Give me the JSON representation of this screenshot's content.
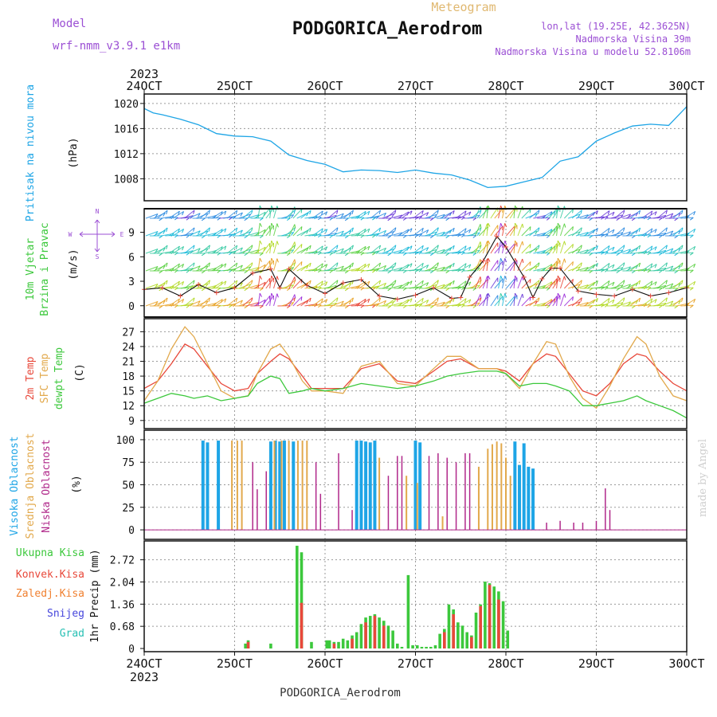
{
  "header": {
    "model_label": "Model",
    "model_name": "wrf-nmm_v3.9.1 e1km",
    "product": "Meteogram",
    "station": "PODGORICA_Aerodrom",
    "lonlat": "lon,lat (19.25E, 42.3625N)",
    "altitude": "Nadmorska Visina 39m",
    "model_altitude": "Nadmorska Visina u modelu 52.8106m"
  },
  "footer": {
    "station": "PODGORICA_Aerodrom",
    "credit": "made by Angel"
  },
  "colors": {
    "pressure": "#1ea5e6",
    "temp2m": "#e8483a",
    "sfc": "#e2a94c",
    "dewpt": "#3cc83c",
    "high_cloud": "#1ea5e6",
    "mid_cloud": "#e2a94c",
    "low_cloud": "#b0288a",
    "rain_total": "#3cc83c",
    "rain_conv": "#e8483a",
    "rain_frozen": "#f08030",
    "snow": "#4646dc",
    "hail": "#28c0b4"
  },
  "chart_data": [
    {
      "id": "pressure",
      "type": "line",
      "ylabel": "Pritisak na nivou mora",
      "unit": "(hPa)",
      "yticks": [
        "1020",
        "1016",
        "1012",
        "1008"
      ],
      "ylim": [
        1005,
        1021
      ],
      "x_year": "2023",
      "xticks": [
        "24OCT",
        "25OCT",
        "26OCT",
        "27OCT",
        "28OCT",
        "29OCT",
        "30OCT"
      ],
      "x": [
        0,
        0.1,
        0.2,
        0.4,
        0.6,
        0.8,
        1.0,
        1.2,
        1.4,
        1.6,
        1.8,
        2.0,
        2.2,
        2.4,
        2.6,
        2.8,
        3.0,
        3.2,
        3.4,
        3.6,
        3.8,
        4.0,
        4.2,
        4.4,
        4.6,
        4.8,
        5.0,
        5.2,
        5.4,
        5.6,
        5.8,
        6.0
      ],
      "series": [
        {
          "values": [
            1019.2,
            1018.5,
            1018.2,
            1017.5,
            1016.6,
            1015.2,
            1014.8,
            1014.7,
            1014.0,
            1011.8,
            1010.9,
            1010.3,
            1009.1,
            1009.4,
            1009.3,
            1009.0,
            1009.4,
            1008.9,
            1008.6,
            1007.8,
            1006.6,
            1006.8,
            1007.5,
            1008.2,
            1010.8,
            1011.5,
            1014.0,
            1015.3,
            1016.4,
            1016.7,
            1016.5,
            1019.5
          ]
        }
      ]
    },
    {
      "id": "wind",
      "type": "line",
      "ylabel": "10m Vjetar",
      "ylabel2": "Brzina i Pravac",
      "unit": "(m/s)",
      "compass": [
        "N",
        "E",
        "S",
        "W"
      ],
      "yticks": [
        "9",
        "6",
        "3",
        "0"
      ],
      "ylim": [
        -1,
        11.5
      ],
      "x": [
        0,
        0.2,
        0.4,
        0.6,
        0.8,
        1.0,
        1.2,
        1.4,
        1.5,
        1.6,
        1.8,
        2.0,
        2.2,
        2.4,
        2.6,
        2.8,
        3.0,
        3.2,
        3.4,
        3.5,
        3.6,
        3.75,
        3.9,
        4.0,
        4.2,
        4.3,
        4.4,
        4.5,
        4.6,
        4.8,
        5.0,
        5.2,
        5.4,
        5.6,
        5.8,
        6.0
      ],
      "series": [
        {
          "values": [
            2.0,
            2.2,
            1.2,
            2.6,
            1.6,
            2.2,
            4.0,
            4.5,
            2.2,
            4.5,
            2.5,
            1.5,
            2.8,
            3.2,
            1.2,
            0.8,
            1.3,
            2.2,
            0.9,
            1.0,
            3.5,
            5.5,
            8.5,
            7.2,
            3.5,
            1.0,
            3.3,
            4.6,
            4.6,
            1.8,
            1.4,
            1.2,
            2.0,
            1.2,
            1.6,
            2.2
          ]
        }
      ]
    },
    {
      "id": "temp",
      "type": "line",
      "ylabel": "2m Temp",
      "ylabel2": "SFC Temp",
      "ylabel3": "dewpt Temp",
      "unit": "(C)",
      "yticks": [
        "27",
        "24",
        "21",
        "18",
        "15",
        "12",
        "9"
      ],
      "ylim": [
        8,
        29
      ],
      "x": [
        0,
        0.15,
        0.3,
        0.45,
        0.55,
        0.7,
        0.85,
        1.0,
        1.15,
        1.25,
        1.4,
        1.5,
        1.6,
        1.75,
        1.85,
        2.0,
        2.2,
        2.4,
        2.6,
        2.8,
        3.0,
        3.2,
        3.35,
        3.5,
        3.7,
        3.9,
        4.0,
        4.15,
        4.3,
        4.45,
        4.55,
        4.7,
        4.85,
        5.0,
        5.15,
        5.3,
        5.45,
        5.55,
        5.7,
        5.85,
        6.0
      ],
      "series": [
        {
          "name": "2m Temp",
          "values": [
            15.5,
            17.0,
            20.5,
            24.5,
            23.5,
            20.0,
            16.5,
            15.0,
            15.5,
            18.5,
            21.0,
            22.5,
            21.5,
            18.0,
            15.5,
            15.5,
            15.5,
            19.5,
            20.5,
            17.0,
            16.5,
            19.0,
            21.0,
            21.5,
            19.5,
            19.5,
            19.0,
            17.0,
            20.5,
            22.5,
            22.0,
            18.5,
            15.0,
            14.0,
            16.5,
            20.5,
            22.5,
            22.0,
            19.0,
            16.5,
            15.0
          ]
        },
        {
          "name": "SFC Temp",
          "values": [
            13.0,
            17.0,
            23.5,
            28.0,
            26.0,
            20.5,
            15.0,
            13.5,
            14.0,
            18.5,
            23.5,
            24.5,
            22.0,
            17.0,
            15.0,
            15.0,
            14.5,
            20.0,
            21.0,
            16.5,
            16.0,
            19.5,
            22.0,
            22.0,
            19.5,
            19.5,
            18.5,
            15.5,
            20.5,
            25.0,
            24.5,
            18.0,
            13.5,
            11.5,
            16.0,
            21.5,
            26.0,
            24.5,
            18.0,
            14.0,
            13.0
          ]
        },
        {
          "name": "dewpt Temp",
          "values": [
            12.5,
            13.5,
            14.5,
            14.0,
            13.5,
            14.0,
            13.0,
            13.5,
            14.0,
            16.5,
            18.0,
            17.5,
            14.5,
            15.0,
            15.5,
            15.0,
            15.5,
            16.5,
            16.0,
            15.5,
            16.0,
            17.0,
            18.0,
            18.5,
            19.0,
            19.0,
            18.5,
            16.0,
            16.5,
            16.5,
            16.0,
            15.0,
            12.0,
            12.0,
            12.5,
            13.0,
            14.0,
            13.0,
            12.0,
            11.0,
            9.5
          ]
        }
      ]
    },
    {
      "id": "cloud",
      "type": "bar",
      "ylabel": "Visoka Oblacnost",
      "ylabel2": "Srednja Oblacnost",
      "ylabel3": "Niska Oblacnost",
      "unit": "(%)",
      "yticks": [
        "100",
        "75",
        "50",
        "25",
        "0"
      ],
      "ylim": [
        -7,
        107
      ],
      "series": [
        {
          "name": "Visoka Oblacnost",
          "x": [
            0.65,
            0.7,
            0.82,
            1.4,
            1.45,
            1.5,
            1.55,
            1.65,
            2.35,
            2.4,
            2.45,
            2.5,
            2.55,
            3.0,
            3.05,
            4.1,
            4.15,
            4.2,
            4.25,
            4.3
          ],
          "values": [
            99,
            97,
            99,
            98,
            99,
            98,
            99,
            98,
            99,
            99,
            98,
            97,
            99,
            99,
            97,
            98,
            72,
            96,
            70,
            68
          ]
        },
        {
          "name": "Srednja Oblacnost",
          "x": [
            0.97,
            1.03,
            1.08,
            1.44,
            1.52,
            1.6,
            1.7,
            1.75,
            1.8,
            2.6,
            2.9,
            3.02,
            3.3,
            3.7,
            3.8,
            3.85,
            3.9,
            3.95,
            4.0,
            4.05
          ],
          "values": [
            99,
            99,
            99,
            99,
            99,
            99,
            99,
            99,
            99,
            80,
            60,
            52,
            15,
            70,
            90,
            95,
            98,
            96,
            80,
            60
          ]
        },
        {
          "name": "Niska Oblacnost",
          "x": [
            1.2,
            1.25,
            1.35,
            1.9,
            1.95,
            2.15,
            2.3,
            2.7,
            2.8,
            2.85,
            3.15,
            3.25,
            3.35,
            3.45,
            3.55,
            3.6,
            4.45,
            4.6,
            4.75,
            4.85,
            5.0,
            5.1,
            5.15
          ],
          "values": [
            75,
            45,
            65,
            75,
            40,
            85,
            22,
            60,
            82,
            82,
            82,
            85,
            80,
            75,
            85,
            85,
            8,
            10,
            8,
            8,
            10,
            46,
            22
          ]
        }
      ]
    },
    {
      "id": "precip",
      "type": "bar",
      "legend": [
        "Ukupna Kisa",
        "Konvek.Kisa",
        "Zaledj.Kisa",
        "Snijeg",
        "Grad"
      ],
      "ylabel": "1hr Precip (mm)",
      "yticks": [
        "2.72",
        "2.04",
        "1.36",
        "0.68",
        "0"
      ],
      "ylim": [
        0,
        3.2
      ],
      "x_year": "2023",
      "xticks": [
        "24OCT",
        "25OCT",
        "26OCT",
        "27OCT",
        "28OCT",
        "29OCT",
        "30OCT"
      ],
      "series": [
        {
          "name": "Ukupna Kisa",
          "x": [
            1.12,
            1.15,
            1.4,
            1.69,
            1.74,
            1.85,
            2.02,
            2.05,
            2.1,
            2.15,
            2.2,
            2.25,
            2.3,
            2.35,
            2.4,
            2.45,
            2.5,
            2.55,
            2.6,
            2.65,
            2.7,
            2.75,
            2.8,
            2.85,
            2.92,
            2.97,
            3.02,
            3.07,
            3.12,
            3.17,
            3.22,
            3.27,
            3.32,
            3.37,
            3.42,
            3.47,
            3.52,
            3.57,
            3.62,
            3.67,
            3.72,
            3.77,
            3.82,
            3.87,
            3.92,
            3.97,
            4.02
          ],
          "values": [
            0.15,
            0.25,
            0.15,
            3.15,
            2.95,
            0.2,
            0.25,
            0.25,
            0.2,
            0.2,
            0.3,
            0.25,
            0.4,
            0.5,
            0.75,
            0.95,
            1.0,
            1.05,
            0.95,
            0.85,
            0.7,
            0.55,
            0.15,
            0.05,
            2.25,
            0.1,
            0.1,
            0.05,
            0.05,
            0.05,
            0.1,
            0.45,
            0.6,
            1.35,
            1.2,
            0.8,
            0.7,
            0.5,
            0.4,
            1.1,
            1.35,
            2.05,
            2.0,
            1.9,
            1.75,
            1.45,
            0.55
          ]
        },
        {
          "name": "Konvek.Kisa",
          "x": [
            1.15,
            1.74,
            2.1,
            2.3,
            2.45,
            2.55,
            2.65,
            3.32,
            3.42,
            3.62,
            3.72,
            3.82,
            3.92
          ],
          "values": [
            0.2,
            1.4,
            0.15,
            0.3,
            0.8,
            1.0,
            0.7,
            0.5,
            1.05,
            0.35,
            1.3,
            1.95,
            1.5
          ]
        }
      ]
    }
  ]
}
